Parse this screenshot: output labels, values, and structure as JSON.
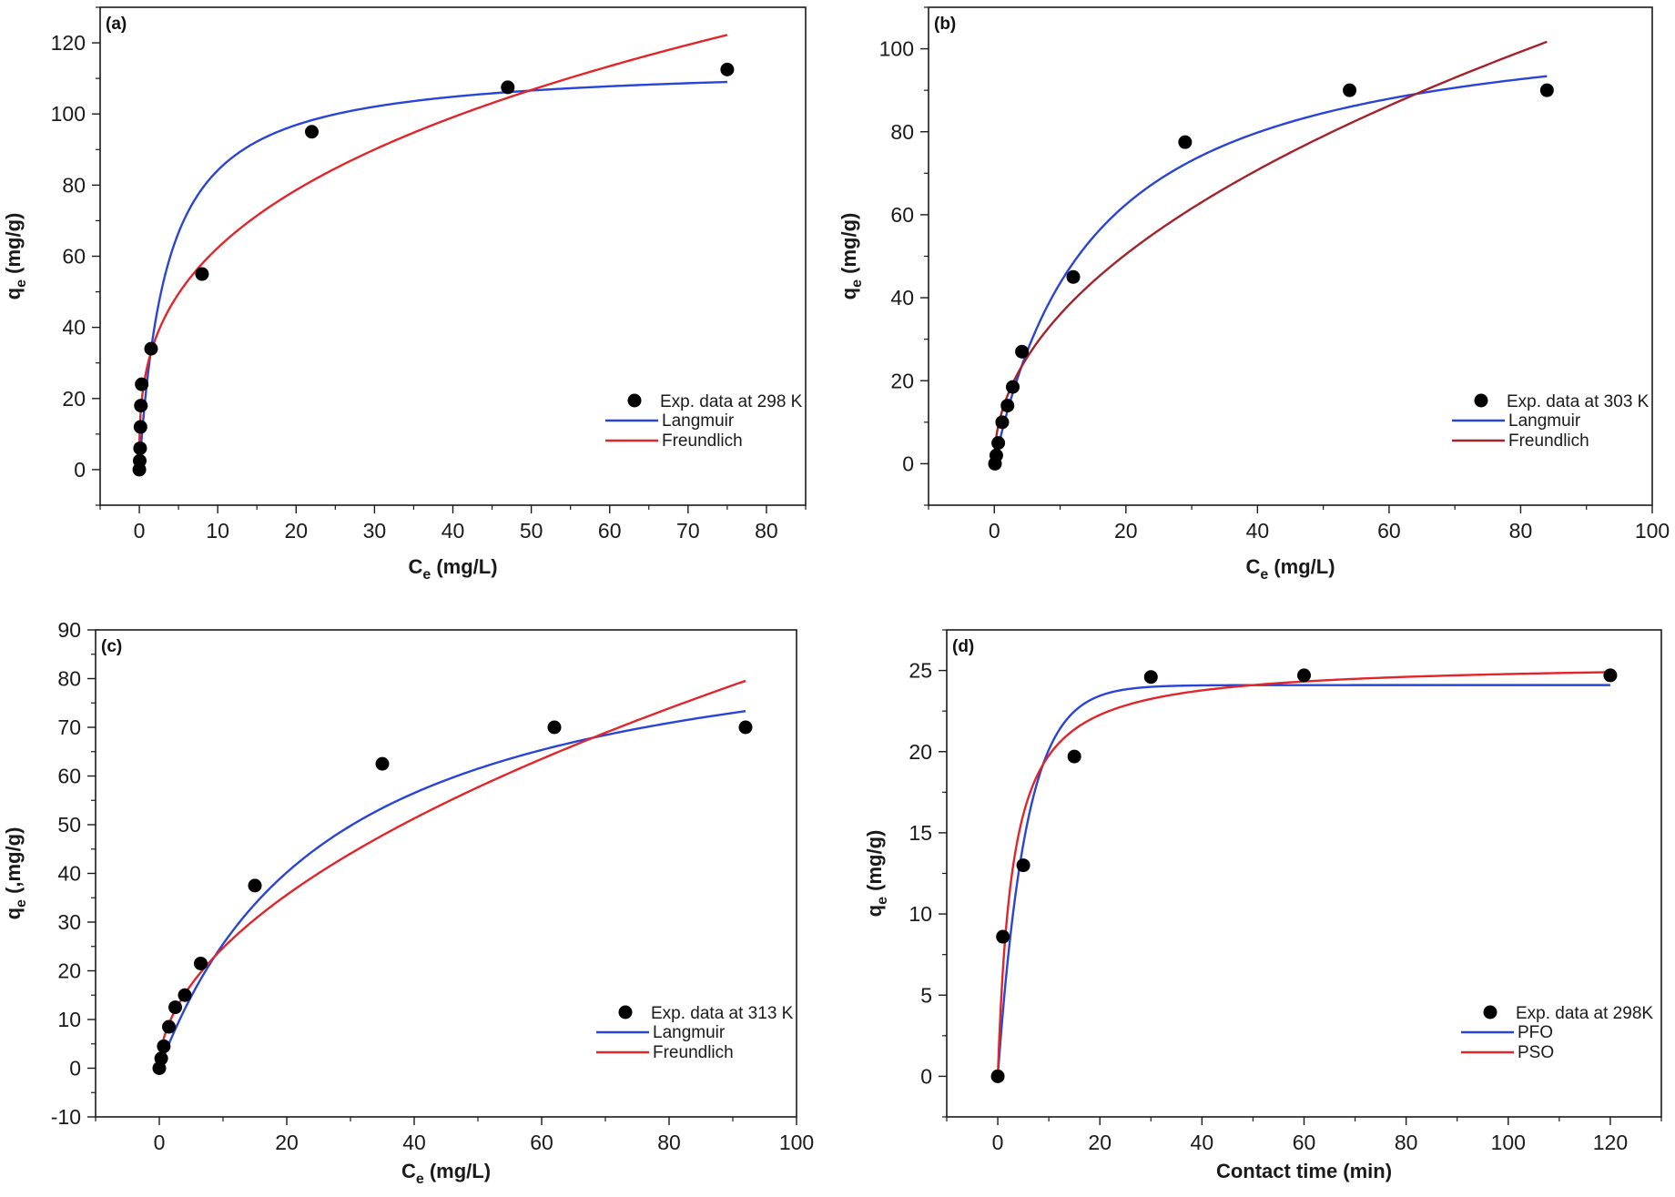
{
  "colors": {
    "axis": "#1a1a1a",
    "marker": "#000000",
    "blue": "#2a44d6",
    "red": "#e0262b",
    "dark_red": "#a3232a"
  },
  "chart_data": [
    {
      "id": "a",
      "type": "scatter",
      "panel_label": "(a)",
      "xlabel": {
        "main": "C",
        "sub": "e",
        "unit": " (mg/L)"
      },
      "ylabel": {
        "main": "q",
        "sub": "e",
        "unit": " (mg/g)"
      },
      "xlim": [
        -5,
        85
      ],
      "ylim": [
        -10,
        130
      ],
      "xticks": [
        0,
        10,
        20,
        30,
        40,
        50,
        60,
        70,
        80
      ],
      "yticks": [
        0,
        20,
        40,
        60,
        80,
        100,
        120
      ],
      "grid": false,
      "legend_position": "bottom-right",
      "points": {
        "name": "Exp. data at 298 K",
        "x": [
          0.0,
          0.05,
          0.1,
          0.15,
          0.2,
          0.3,
          1.5,
          8,
          22,
          47,
          75
        ],
        "y": [
          0,
          2.5,
          6,
          12,
          18,
          24,
          34,
          55,
          95,
          107.5,
          112.5
        ]
      },
      "series": [
        {
          "name": "Langmuir",
          "model": "langmuir",
          "qmax": 114.2,
          "K": 0.28,
          "x_range": [
            0,
            75
          ],
          "color_key": "blue"
        },
        {
          "name": "Freundlich",
          "model": "freundlich",
          "Kf": 28.9,
          "n": 0.334,
          "x_range": [
            0,
            75
          ],
          "color_key": "red"
        }
      ]
    },
    {
      "id": "b",
      "type": "scatter",
      "panel_label": "(b)",
      "xlabel": {
        "main": "C",
        "sub": "e",
        "unit": " (mg/L)"
      },
      "ylabel": {
        "main": "q",
        "sub": "e",
        "unit": " (mg/g)"
      },
      "xlim": [
        -10,
        100
      ],
      "ylim": [
        -10,
        110
      ],
      "xticks": [
        0,
        20,
        40,
        60,
        80,
        100
      ],
      "yticks": [
        0,
        20,
        40,
        60,
        80,
        100
      ],
      "grid": false,
      "legend_position": "bottom-right",
      "points": {
        "name": "Exp. data at 303 K",
        "x": [
          0.1,
          0.3,
          0.6,
          1.2,
          2.0,
          2.8,
          4.2,
          12,
          29,
          54,
          84
        ],
        "y": [
          0,
          2,
          5,
          10,
          14,
          18.5,
          27,
          45,
          77.5,
          90,
          90
        ]
      },
      "series": [
        {
          "name": "Langmuir",
          "model": "langmuir",
          "qmax": 110.5,
          "K": 0.065,
          "x_range": [
            0,
            84
          ],
          "color_key": "blue"
        },
        {
          "name": "Freundlich",
          "model": "freundlich",
          "Kf": 11.7,
          "n": 0.488,
          "x_range": [
            0,
            84
          ],
          "color_key": "dark_red"
        }
      ]
    },
    {
      "id": "c",
      "type": "scatter",
      "panel_label": "(c)",
      "xlabel": {
        "main": "C",
        "sub": "e",
        "unit": " (mg/L)"
      },
      "ylabel": {
        "main": "q",
        "sub": "e",
        "unit": " (,mg/g)"
      },
      "xlim": [
        -10,
        100
      ],
      "ylim": [
        -10,
        90
      ],
      "xticks": [
        0,
        20,
        40,
        60,
        80,
        100
      ],
      "yticks": [
        -10,
        0,
        10,
        20,
        30,
        40,
        50,
        60,
        70,
        80,
        90
      ],
      "grid": false,
      "legend_position": "bottom-right",
      "points": {
        "name": "Exp. data at 313 K",
        "x": [
          0,
          0.3,
          0.7,
          1.5,
          2.5,
          4,
          6.5,
          15,
          35,
          62,
          92
        ],
        "y": [
          0,
          2,
          4.5,
          8.5,
          12.5,
          15,
          21.5,
          37.5,
          62.5,
          70,
          70
        ]
      },
      "series": [
        {
          "name": "Langmuir",
          "model": "langmuir",
          "qmax": 95.1,
          "K": 0.0366,
          "x_range": [
            0,
            92
          ],
          "color_key": "blue"
        },
        {
          "name": "Freundlich",
          "model": "freundlich",
          "Kf": 7.34,
          "n": 0.527,
          "x_range": [
            0,
            92
          ],
          "color_key": "red"
        }
      ]
    },
    {
      "id": "d",
      "type": "scatter",
      "panel_label": "(d)",
      "xlabel": {
        "main": "Contact time (min)",
        "sub": "",
        "unit": ""
      },
      "ylabel": {
        "main": "q",
        "sub": "e",
        "unit": " (mg/g)"
      },
      "xlim": [
        -10,
        130
      ],
      "ylim": [
        -2.5,
        27.5
      ],
      "xticks": [
        0,
        20,
        40,
        60,
        80,
        100,
        120
      ],
      "yticks": [
        0,
        5,
        10,
        15,
        20,
        25
      ],
      "grid": false,
      "legend_position": "bottom-right",
      "points": {
        "name": "Exp. data at 298K",
        "x": [
          0,
          1,
          5,
          15,
          30,
          60,
          120
        ],
        "y": [
          0,
          8.6,
          13,
          19.7,
          24.6,
          24.7,
          24.7
        ]
      },
      "series": [
        {
          "name": "PFO",
          "model": "pfo",
          "qe": 24.1,
          "k": 0.18,
          "x_range": [
            0,
            120
          ],
          "color_key": "blue"
        },
        {
          "name": "PSO",
          "model": "pso",
          "qe": 25.5,
          "k": 0.0135,
          "x_range": [
            0,
            120
          ],
          "color_key": "red"
        }
      ]
    }
  ]
}
